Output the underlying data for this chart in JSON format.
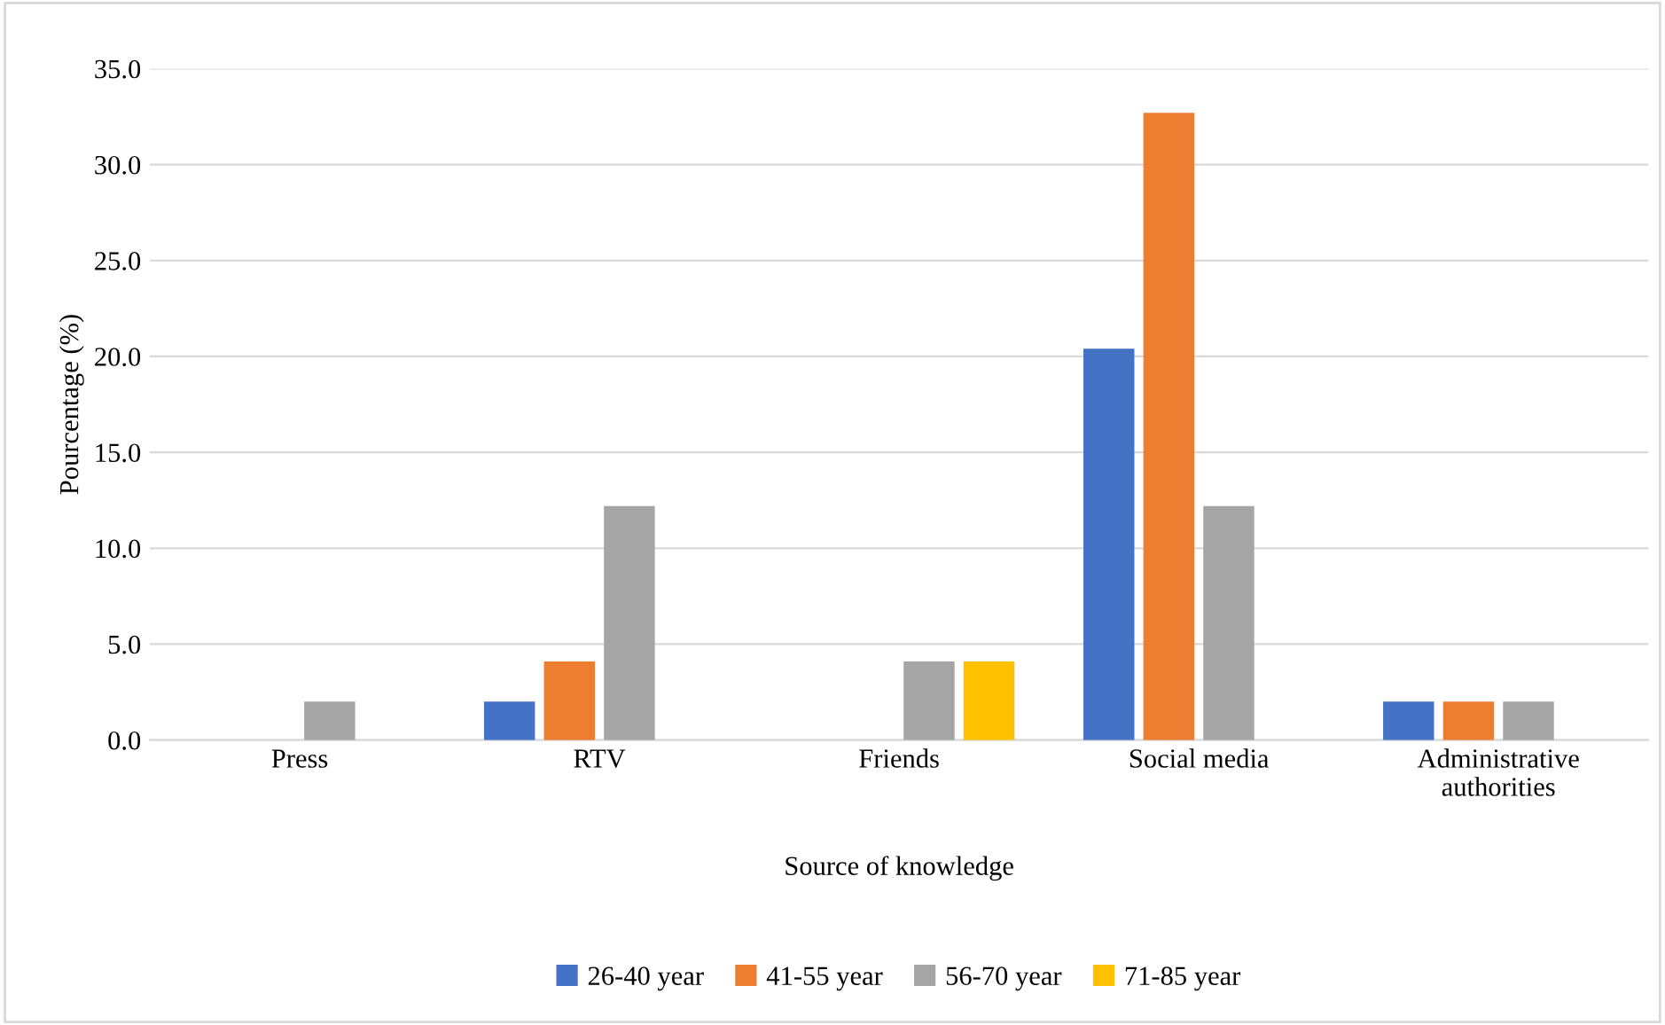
{
  "chart_data": {
    "type": "bar",
    "xlabel": "Source of knowledge",
    "ylabel": "Pourcentage (%)",
    "categories": [
      "Press",
      "RTV",
      "Friends",
      "Social media",
      "Administrative\nauthorities"
    ],
    "series": [
      {
        "name": "26-40 year",
        "color": "#4472c4",
        "values": [
          0,
          2.0,
          0,
          20.4,
          2.0
        ]
      },
      {
        "name": "41-55 year",
        "color": "#ed7d31",
        "values": [
          0,
          4.1,
          0,
          32.7,
          2.0
        ]
      },
      {
        "name": "56-70 year",
        "color": "#a5a5a5",
        "values": [
          2.0,
          12.2,
          4.1,
          12.2,
          2.0
        ]
      },
      {
        "name": "71-85 year",
        "color": "#ffc000",
        "values": [
          0,
          0,
          4.1,
          0,
          0
        ]
      }
    ],
    "ylim": [
      0,
      35
    ],
    "yticks": [
      {
        "value": 0,
        "label": "0.0"
      },
      {
        "value": 5,
        "label": "5.0"
      },
      {
        "value": 10,
        "label": "10.0"
      },
      {
        "value": 15,
        "label": "15.0"
      },
      {
        "value": 20,
        "label": "20.0"
      },
      {
        "value": 25,
        "label": "25.0"
      },
      {
        "value": 30,
        "label": "30.0"
      },
      {
        "value": 35,
        "label": "35.0"
      }
    ],
    "grid": "y",
    "legend": "bottom"
  }
}
